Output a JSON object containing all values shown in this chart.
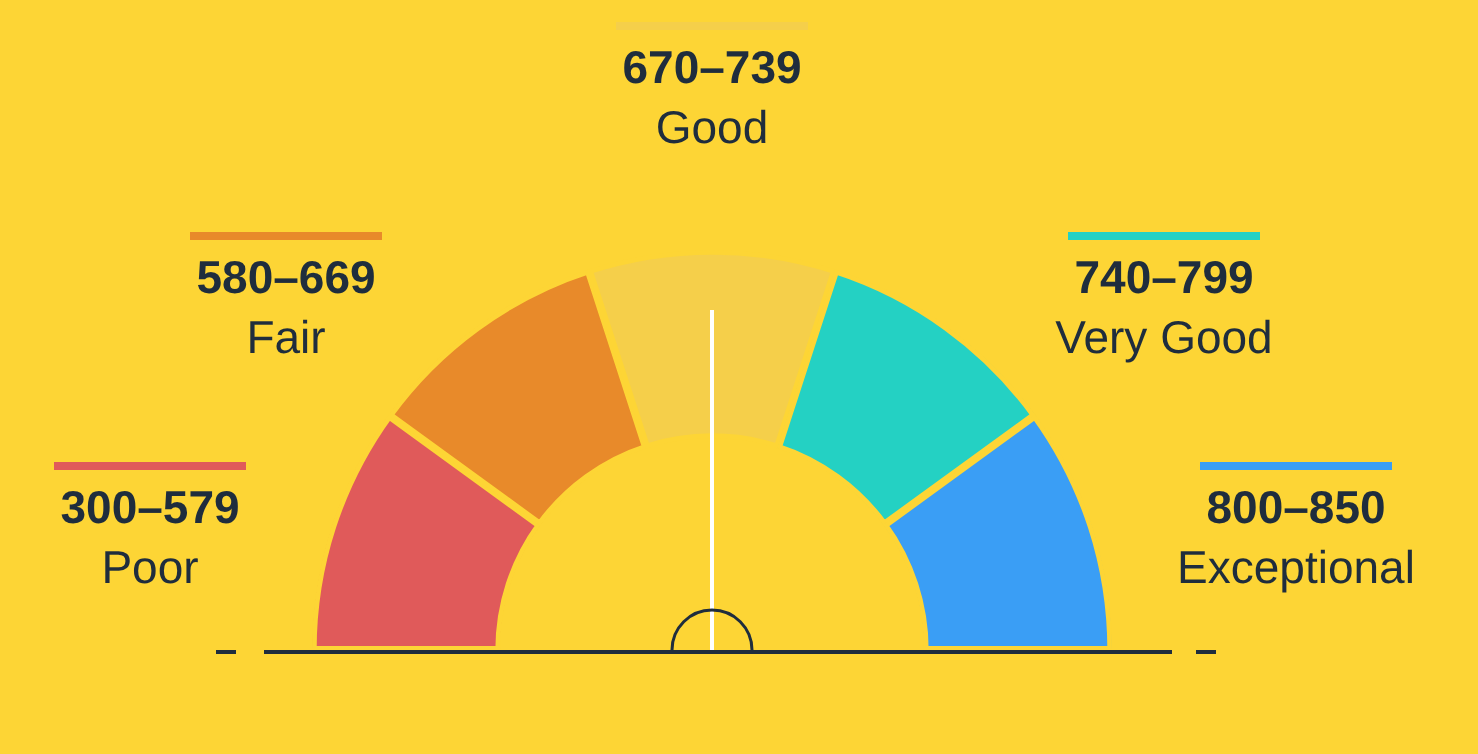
{
  "chart_data": {
    "type": "donut",
    "categories": [
      "Poor",
      "Fair",
      "Good",
      "Very Good",
      "Exceptional"
    ],
    "values": [
      20,
      20,
      20,
      20,
      20
    ],
    "value_labels": [
      "300–579",
      "580–669",
      "670–739",
      "740–799",
      "800–850"
    ],
    "colors": [
      "#e05a5a",
      "#e88a2a",
      "#f5cf4a",
      "#24d1c3",
      "#3a9ef5"
    ],
    "needle": "Good",
    "legend": false
  }
}
